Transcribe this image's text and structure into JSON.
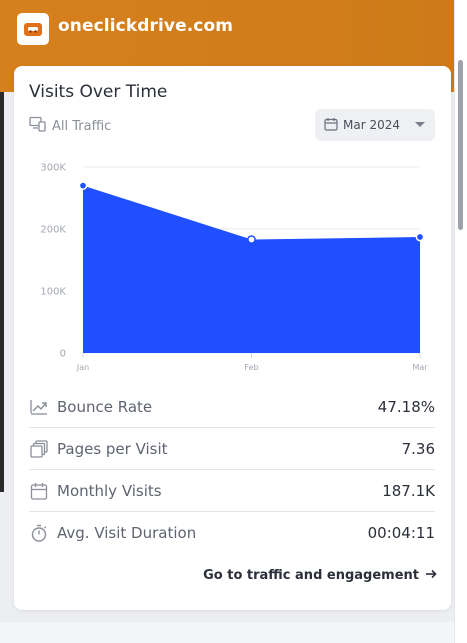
{
  "site": {
    "name": "oneclickdrive.com",
    "logo_icon": "car-icon",
    "brand_color": "#d6801d"
  },
  "card": {
    "title": "Visits Over Time",
    "traffic_filter": "All Traffic",
    "traffic_icon": "devices-icon",
    "date_selector": "Mar 2024",
    "date_icon": "calendar-icon"
  },
  "chart_data": {
    "type": "area",
    "title": "",
    "xlabel": "",
    "ylabel": "",
    "categories": [
      "Jan",
      "Feb",
      "Mar"
    ],
    "series": [
      {
        "values": [
          270000,
          183000,
          187100
        ]
      }
    ],
    "ylim": [
      0,
      300000
    ],
    "yticks": [
      "0",
      "100K",
      "200K",
      "300K"
    ],
    "grid": true,
    "colors": {
      "fill": "#1f4fff",
      "marker": "#1f4fff"
    }
  },
  "metrics": [
    {
      "icon": "trend-icon",
      "label": "Bounce Rate",
      "value": "47.18%"
    },
    {
      "icon": "pages-icon",
      "label": "Pages per Visit",
      "value": "7.36"
    },
    {
      "icon": "calendar-icon",
      "label": "Monthly Visits",
      "value": "187.1K"
    },
    {
      "icon": "stopwatch-icon",
      "label": "Avg. Visit Duration",
      "value": "00:04:11"
    }
  ],
  "cta": {
    "label": "Go to traffic and engagement",
    "icon": "arrow-right-icon"
  }
}
